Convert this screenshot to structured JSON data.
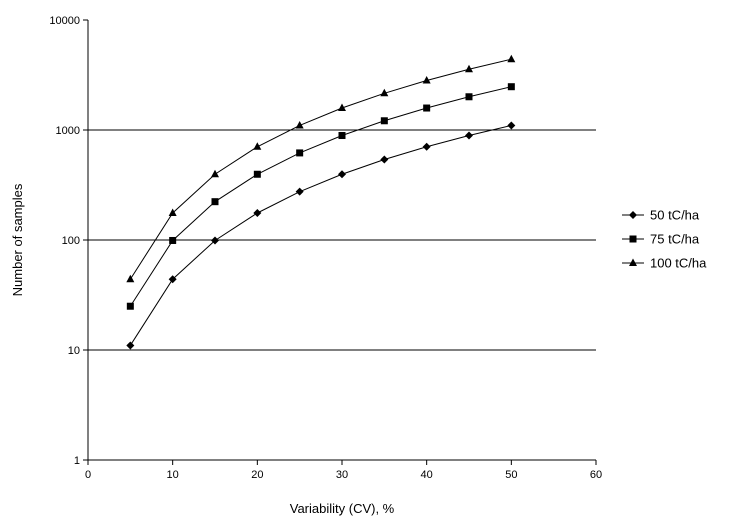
{
  "chart_data": {
    "type": "line",
    "title": "",
    "xlabel": "Variability (CV), %",
    "ylabel": "Number of samples",
    "xlim": [
      0,
      60
    ],
    "ylim": [
      1,
      10000
    ],
    "y_scale": "log",
    "x_ticks": [
      "0",
      "10",
      "20",
      "30",
      "40",
      "50",
      "60"
    ],
    "y_ticks": [
      "1",
      "10",
      "100",
      "1000",
      "10000"
    ],
    "grid": "horizontal major lines at 10, 100, 1000",
    "legend_position": "right",
    "x": [
      5,
      10,
      15,
      20,
      25,
      30,
      35,
      40,
      45,
      50
    ],
    "series": [
      {
        "name": "50 tC/ha",
        "marker": "diamond",
        "color": "#000000",
        "values": [
          11,
          44,
          99,
          176,
          275,
          396,
          539,
          704,
          891,
          1100
        ]
      },
      {
        "name": "75 tC/ha",
        "marker": "square",
        "color": "#000000",
        "values": [
          25,
          99,
          223,
          396,
          619,
          891,
          1213,
          1584,
          2005,
          2475
        ]
      },
      {
        "name": "100 tC/ha",
        "marker": "triangle",
        "color": "#000000",
        "values": [
          44,
          176,
          396,
          704,
          1100,
          1584,
          2156,
          2816,
          3564,
          4400
        ]
      }
    ]
  }
}
